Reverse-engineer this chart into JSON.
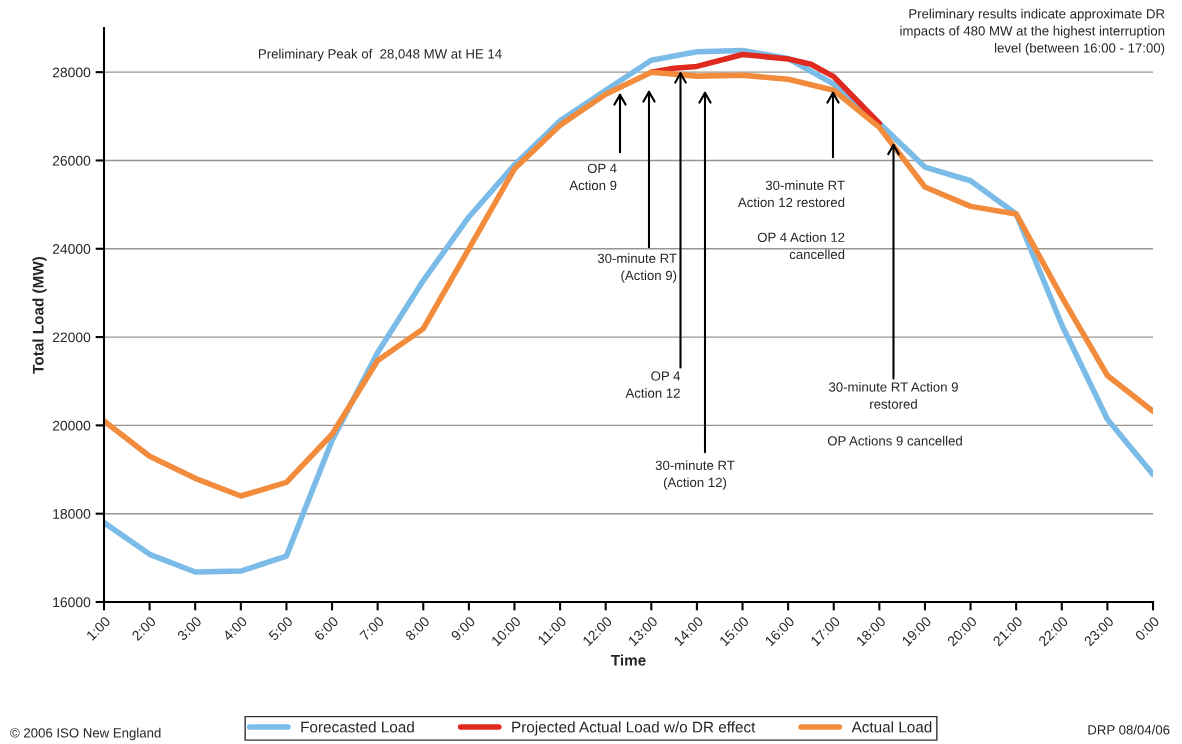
{
  "chart_data": {
    "type": "line",
    "xlabel": "Time",
    "ylabel": "Total Load (MW)",
    "xlim": [
      1,
      24
    ],
    "ylim": [
      16000,
      29000
    ],
    "xticks": [
      {
        "value": 1,
        "label": "1:00"
      },
      {
        "value": 2,
        "label": "2:00"
      },
      {
        "value": 3,
        "label": "3:00"
      },
      {
        "value": 4,
        "label": "4:00"
      },
      {
        "value": 5,
        "label": "5:00"
      },
      {
        "value": 6,
        "label": "6:00"
      },
      {
        "value": 7,
        "label": "7:00"
      },
      {
        "value": 8,
        "label": "8:00"
      },
      {
        "value": 9,
        "label": "9:00"
      },
      {
        "value": 10,
        "label": "10:00"
      },
      {
        "value": 11,
        "label": "11:00"
      },
      {
        "value": 12,
        "label": "12:00"
      },
      {
        "value": 13,
        "label": "13:00"
      },
      {
        "value": 14,
        "label": "14:00"
      },
      {
        "value": 15,
        "label": "15:00"
      },
      {
        "value": 16,
        "label": "16:00"
      },
      {
        "value": 17,
        "label": "17:00"
      },
      {
        "value": 18,
        "label": "18:00"
      },
      {
        "value": 19,
        "label": "19:00"
      },
      {
        "value": 20,
        "label": "20:00"
      },
      {
        "value": 21,
        "label": "21:00"
      },
      {
        "value": 22,
        "label": "22:00"
      },
      {
        "value": 23,
        "label": "23:00"
      },
      {
        "value": 24,
        "label": "0:00"
      }
    ],
    "yticks": [
      16000,
      18000,
      20000,
      22000,
      24000,
      26000,
      28000
    ],
    "grid": "y",
    "legend": "bottom",
    "marker": "none",
    "line_style": "solid",
    "series": [
      {
        "name": "Forecasted Load",
        "color": "#7bbbe8",
        "x": [
          1,
          2,
          3,
          4,
          5,
          6,
          7,
          8,
          9,
          10,
          11,
          12,
          13,
          14,
          15,
          16,
          17,
          18,
          19,
          20,
          21,
          22,
          23,
          24
        ],
        "values": [
          17800,
          17080,
          16680,
          16700,
          17040,
          19660,
          21650,
          23280,
          24720,
          25900,
          26900,
          27590,
          28270,
          28460,
          28490,
          28310,
          27730,
          26840,
          25850,
          25540,
          24790,
          22280,
          20140,
          18890
        ]
      },
      {
        "name": "Projected Actual Load w/o DR effect",
        "color": "#e02a1f",
        "x": [
          13,
          13.5,
          14,
          15,
          16,
          16.5,
          17,
          18
        ],
        "values": [
          28000,
          28090,
          28130,
          28400,
          28300,
          28180,
          27900,
          26840
        ]
      },
      {
        "name": "Actual Load",
        "color": "#f28c3c",
        "x": [
          1,
          2,
          3,
          4,
          5,
          6,
          7,
          8,
          9,
          10,
          11,
          12,
          13,
          14,
          15,
          16,
          17,
          18,
          19,
          20,
          21,
          22,
          23,
          24
        ],
        "values": [
          20100,
          19300,
          18800,
          18400,
          18710,
          19800,
          21470,
          22190,
          24000,
          25810,
          26800,
          27500,
          28000,
          27910,
          27930,
          27840,
          27590,
          26750,
          25400,
          24960,
          24790,
          22910,
          21130,
          20320
        ]
      }
    ],
    "annotations": [
      "OP 4\nAction 9",
      "30-minute RT\n(Action 9)",
      {
        "text": "OP 4\nAction 12",
        "x": 13.64,
        "y": 28020
      },
      "30-minute RT\n(Action 12)",
      "30-minute RT\nAction 12 restored",
      "OP 4 Action 12\ncancelled",
      {
        "text": "30-minute RT Action 9\nrestored",
        "x": 18.31,
        "y": 26400
      },
      "OP Actions 9 cancelled",
      "Preliminary Peak of  28,048 MW at HE 14",
      "Preliminary results indicate approximate DR\nimpacts of 480 MW at the highest interruption\nlevel (between 16:00 - 17:00)",
      "© 2006 ISO New England",
      "DRP 08/04/06"
    ]
  }
}
